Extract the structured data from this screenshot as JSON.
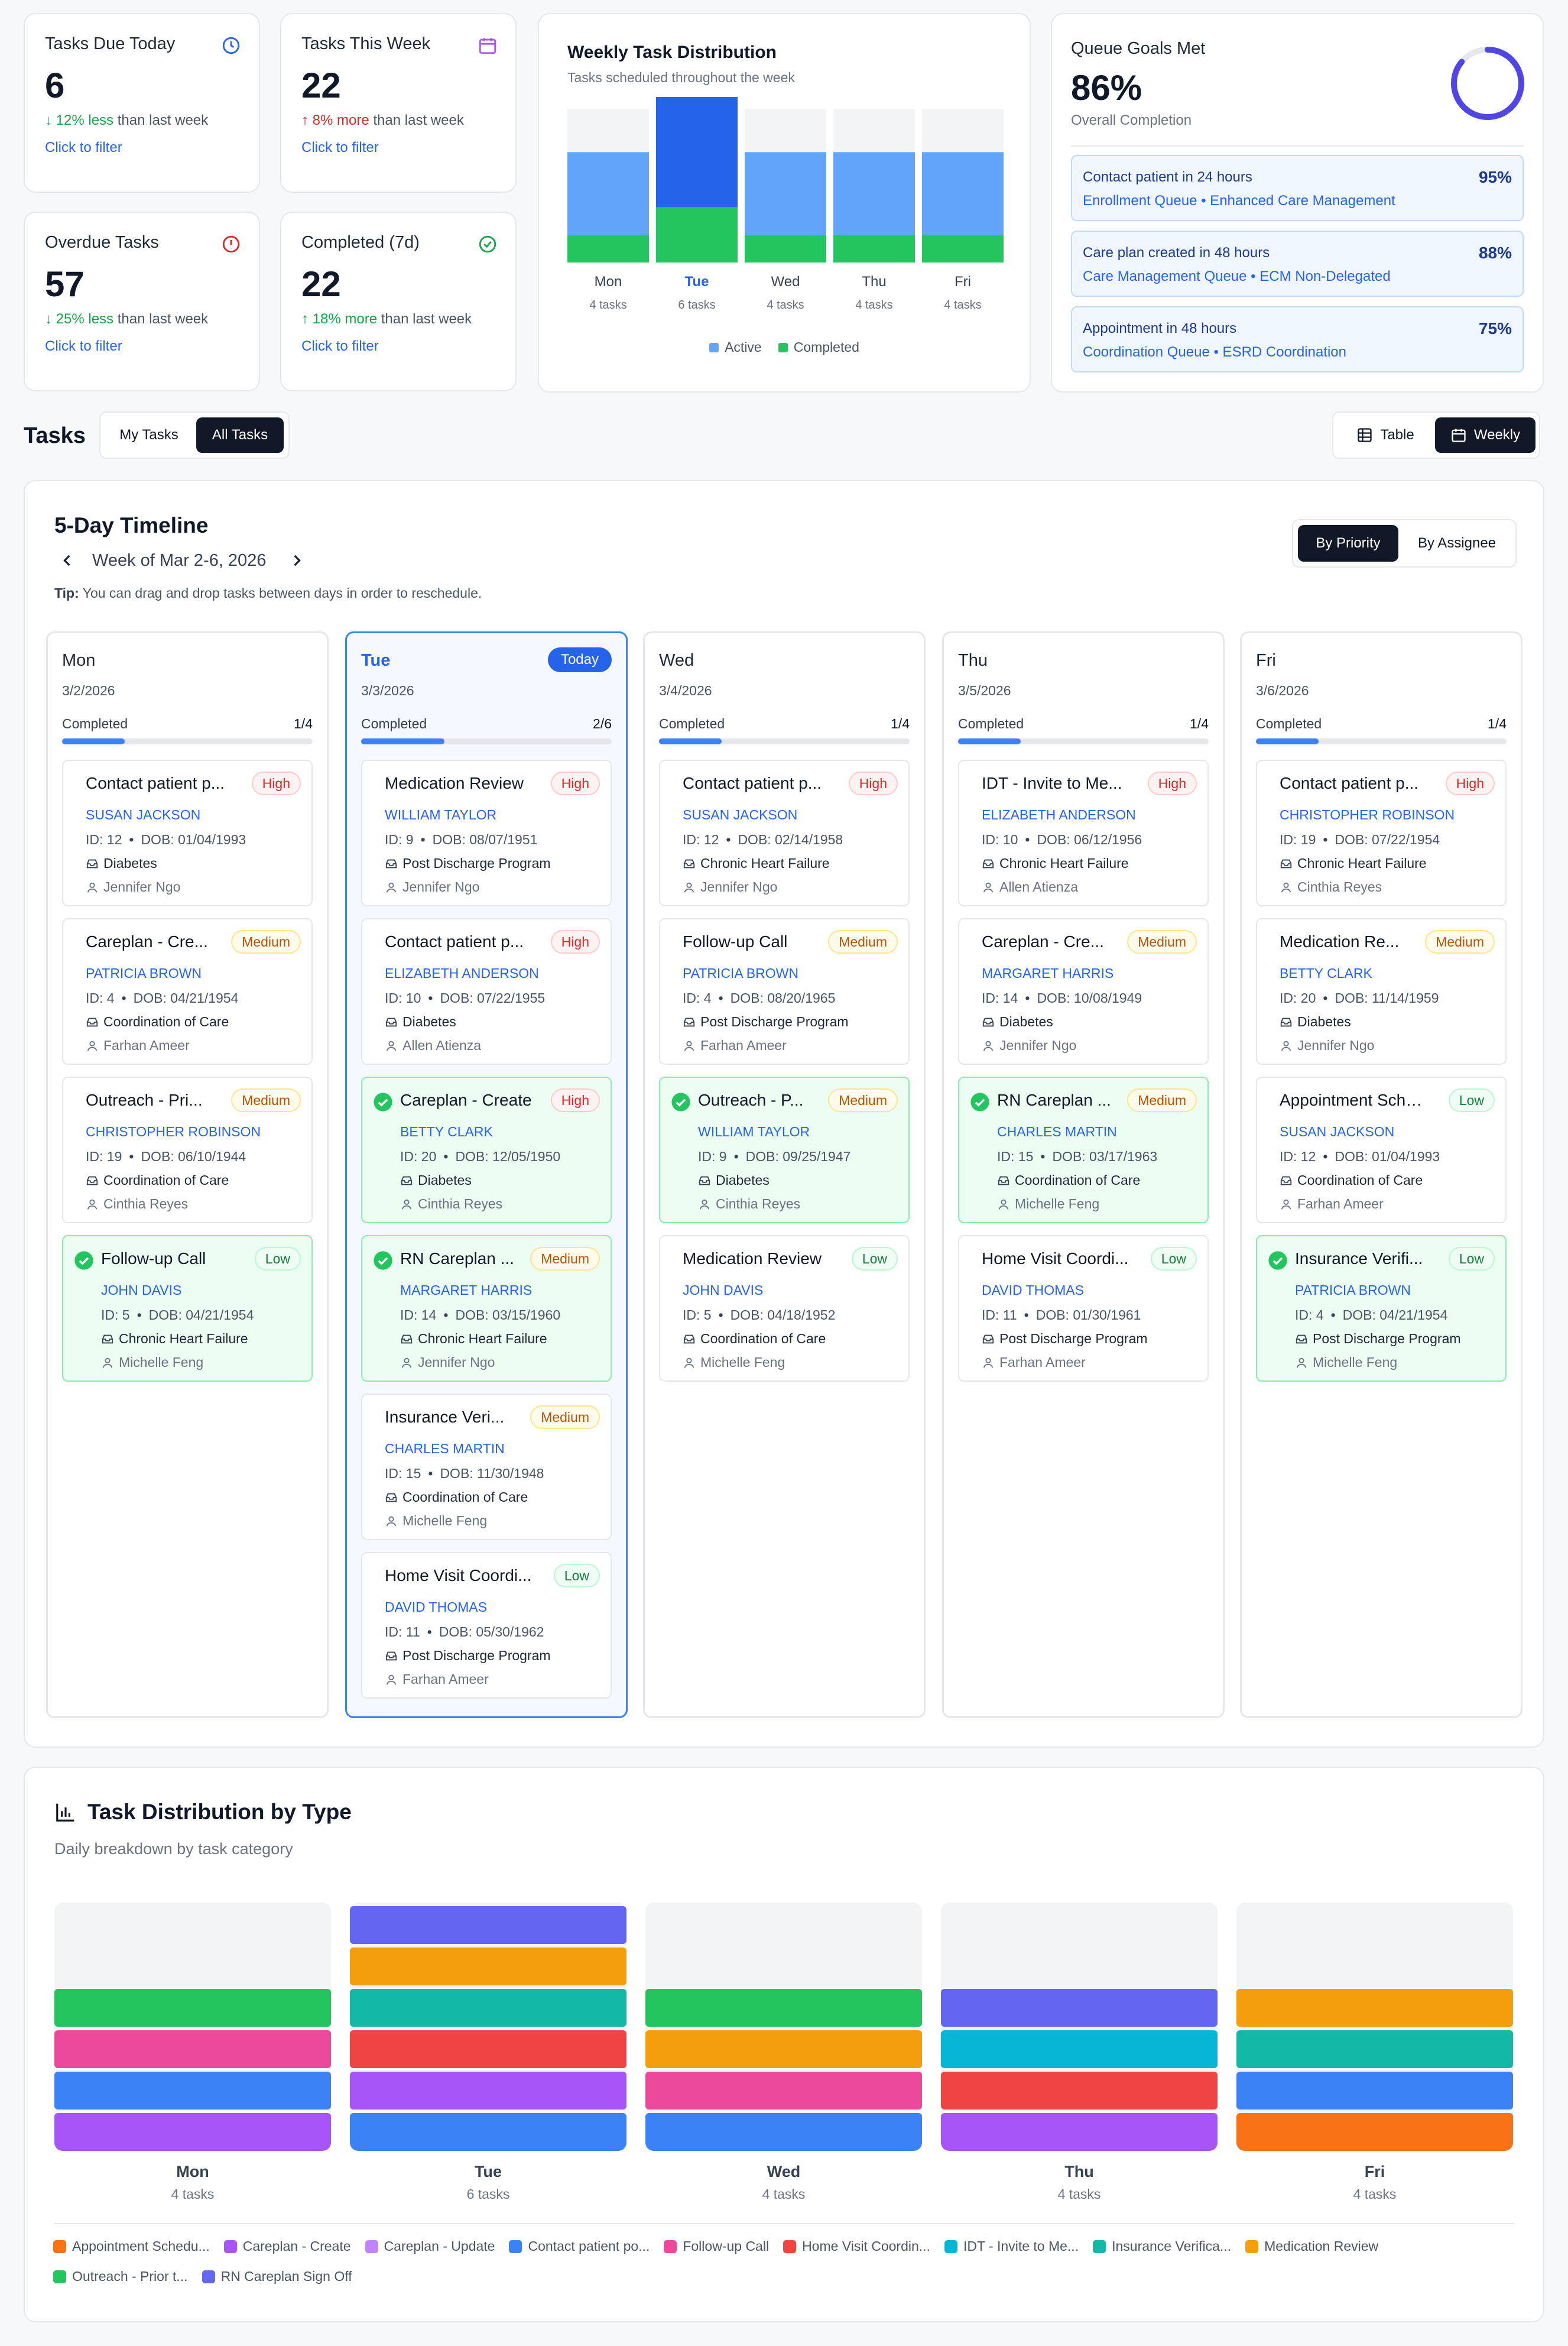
{
  "stats": [
    {
      "title": "Tasks Due Today",
      "value": "6",
      "delta": "12% less",
      "delta_dir": "down",
      "delta_suffix": "than last week",
      "filter": "Click to filter",
      "icon": "clock-icon"
    },
    {
      "title": "Tasks This Week",
      "value": "22",
      "delta": "8% more",
      "delta_dir": "up-bad",
      "delta_suffix": "than last week",
      "filter": "Click to filter",
      "icon": "calendar-icon"
    },
    {
      "title": "Overdue Tasks",
      "value": "57",
      "delta": "25% less",
      "delta_dir": "down",
      "delta_suffix": "than last week",
      "filter": "Click to filter",
      "icon": "alert-circle-icon"
    },
    {
      "title": "Completed (7d)",
      "value": "22",
      "delta": "18% more",
      "delta_dir": "up-good",
      "delta_suffix": "than last week",
      "filter": "Click to filter",
      "icon": "check-circle-icon"
    }
  ],
  "weekly_dist": {
    "title": "Weekly Task Distribution",
    "subtitle": "Tasks scheduled throughout the week",
    "legend_active": "Active",
    "legend_completed": "Completed"
  },
  "chart_data": {
    "type": "bar",
    "categories": [
      "Mon",
      "Tue",
      "Wed",
      "Thu",
      "Fri"
    ],
    "tick_sublabels": [
      "4 tasks",
      "6 tasks",
      "4 tasks",
      "4 tasks",
      "4 tasks"
    ],
    "series": [
      {
        "name": "Active",
        "values": [
          3,
          4,
          3,
          3,
          3
        ]
      },
      {
        "name": "Completed",
        "values": [
          1,
          2,
          1,
          1,
          1
        ]
      }
    ],
    "ylim": [
      0,
      6
    ],
    "highlight": "Tue"
  },
  "queue": {
    "title": "Queue Goals Met",
    "value": "86%",
    "subtitle": "Overall Completion",
    "completion": 0.86,
    "goals": [
      {
        "title": "Contact patient in 24 hours",
        "sub": "Enrollment Queue • Enhanced Care Management",
        "pct": "95%"
      },
      {
        "title": "Care plan created in 48 hours",
        "sub": "Care Management Queue • ECM Non-Delegated",
        "pct": "88%"
      },
      {
        "title": "Appointment in 48 hours",
        "sub": "Coordination Queue • ESRD Coordination",
        "pct": "75%"
      }
    ]
  },
  "tasks_header": {
    "title": "Tasks",
    "my_tasks": "My Tasks",
    "all_tasks": "All Tasks",
    "table": "Table",
    "weekly": "Weekly"
  },
  "timeline": {
    "title": "5-Day Timeline",
    "week_label": "Week of Mar 2-6, 2026",
    "tip_bold": "Tip:",
    "tip": "You can drag and drop tasks between days in order to reschedule.",
    "by_priority": "By Priority",
    "by_assignee": "By Assignee",
    "completed_label": "Completed",
    "today_label": "Today",
    "days": [
      {
        "name": "Mon",
        "date": "3/2/2026",
        "ratio": "1/4",
        "frac": 0.25,
        "tasks": [
          {
            "title": "Contact patient p...",
            "priority": "High",
            "patient": "SUSAN JACKSON",
            "id": "ID: 12",
            "dob": "DOB: 01/04/1993",
            "program": "Diabetes",
            "user": "Jennifer Ngo",
            "done": false
          },
          {
            "title": "Careplan - Cre...",
            "priority": "Medium",
            "patient": "PATRICIA BROWN",
            "id": "ID: 4",
            "dob": "DOB: 04/21/1954",
            "program": "Coordination of Care",
            "user": "Farhan Ameer",
            "done": false
          },
          {
            "title": "Outreach - Pri...",
            "priority": "Medium",
            "patient": "CHRISTOPHER ROBINSON",
            "id": "ID: 19",
            "dob": "DOB: 06/10/1944",
            "program": "Coordination of Care",
            "user": "Cinthia Reyes",
            "done": false
          },
          {
            "title": "Follow-up Call",
            "priority": "Low",
            "patient": "JOHN DAVIS",
            "id": "ID: 5",
            "dob": "DOB: 04/21/1954",
            "program": "Chronic Heart Failure",
            "user": "Michelle Feng",
            "done": true
          }
        ]
      },
      {
        "name": "Tue",
        "date": "3/3/2026",
        "ratio": "2/6",
        "frac": 0.333,
        "today": true,
        "tasks": [
          {
            "title": "Medication Review",
            "priority": "High",
            "patient": "WILLIAM TAYLOR",
            "id": "ID: 9",
            "dob": "DOB: 08/07/1951",
            "program": "Post Discharge Program",
            "user": "Jennifer Ngo",
            "done": false
          },
          {
            "title": "Contact patient p...",
            "priority": "High",
            "patient": "ELIZABETH ANDERSON",
            "id": "ID: 10",
            "dob": "DOB: 07/22/1955",
            "program": "Diabetes",
            "user": "Allen Atienza",
            "done": false
          },
          {
            "title": "Careplan - Create",
            "priority": "High",
            "patient": "BETTY CLARK",
            "id": "ID: 20",
            "dob": "DOB: 12/05/1950",
            "program": "Diabetes",
            "user": "Cinthia Reyes",
            "done": true
          },
          {
            "title": "RN Careplan ...",
            "priority": "Medium",
            "patient": "MARGARET HARRIS",
            "id": "ID: 14",
            "dob": "DOB: 03/15/1960",
            "program": "Chronic Heart Failure",
            "user": "Jennifer Ngo",
            "done": true
          },
          {
            "title": "Insurance Veri...",
            "priority": "Medium",
            "patient": "CHARLES MARTIN",
            "id": "ID: 15",
            "dob": "DOB: 11/30/1948",
            "program": "Coordination of Care",
            "user": "Michelle Feng",
            "done": false
          },
          {
            "title": "Home Visit Coordi...",
            "priority": "Low",
            "patient": "DAVID THOMAS",
            "id": "ID: 11",
            "dob": "DOB: 05/30/1962",
            "program": "Post Discharge Program",
            "user": "Farhan Ameer",
            "done": false
          }
        ]
      },
      {
        "name": "Wed",
        "date": "3/4/2026",
        "ratio": "1/4",
        "frac": 0.25,
        "tasks": [
          {
            "title": "Contact patient p...",
            "priority": "High",
            "patient": "SUSAN JACKSON",
            "id": "ID: 12",
            "dob": "DOB: 02/14/1958",
            "program": "Chronic Heart Failure",
            "user": "Jennifer Ngo",
            "done": false
          },
          {
            "title": "Follow-up Call",
            "priority": "Medium",
            "patient": "PATRICIA BROWN",
            "id": "ID: 4",
            "dob": "DOB: 08/20/1965",
            "program": "Post Discharge Program",
            "user": "Farhan Ameer",
            "done": false
          },
          {
            "title": "Outreach - P...",
            "priority": "Medium",
            "patient": "WILLIAM TAYLOR",
            "id": "ID: 9",
            "dob": "DOB: 09/25/1947",
            "program": "Diabetes",
            "user": "Cinthia Reyes",
            "done": true
          },
          {
            "title": "Medication Review",
            "priority": "Low",
            "patient": "JOHN DAVIS",
            "id": "ID: 5",
            "dob": "DOB: 04/18/1952",
            "program": "Coordination of Care",
            "user": "Michelle Feng",
            "done": false
          }
        ]
      },
      {
        "name": "Thu",
        "date": "3/5/2026",
        "ratio": "1/4",
        "frac": 0.25,
        "tasks": [
          {
            "title": "IDT - Invite to Me...",
            "priority": "High",
            "patient": "ELIZABETH ANDERSON",
            "id": "ID: 10",
            "dob": "DOB: 06/12/1956",
            "program": "Chronic Heart Failure",
            "user": "Allen Atienza",
            "done": false
          },
          {
            "title": "Careplan - Cre...",
            "priority": "Medium",
            "patient": "MARGARET HARRIS",
            "id": "ID: 14",
            "dob": "DOB: 10/08/1949",
            "program": "Diabetes",
            "user": "Jennifer Ngo",
            "done": false
          },
          {
            "title": "RN Careplan ...",
            "priority": "Medium",
            "patient": "CHARLES MARTIN",
            "id": "ID: 15",
            "dob": "DOB: 03/17/1963",
            "program": "Coordination of Care",
            "user": "Michelle Feng",
            "done": true
          },
          {
            "title": "Home Visit Coordi...",
            "priority": "Low",
            "patient": "DAVID THOMAS",
            "id": "ID: 11",
            "dob": "DOB: 01/30/1961",
            "program": "Post Discharge Program",
            "user": "Farhan Ameer",
            "done": false
          }
        ]
      },
      {
        "name": "Fri",
        "date": "3/6/2026",
        "ratio": "1/4",
        "frac": 0.25,
        "tasks": [
          {
            "title": "Contact patient p...",
            "priority": "High",
            "patient": "CHRISTOPHER ROBINSON",
            "id": "ID: 19",
            "dob": "DOB: 07/22/1954",
            "program": "Chronic Heart Failure",
            "user": "Cinthia Reyes",
            "done": false
          },
          {
            "title": "Medication Re...",
            "priority": "Medium",
            "patient": "BETTY CLARK",
            "id": "ID: 20",
            "dob": "DOB: 11/14/1959",
            "program": "Diabetes",
            "user": "Jennifer Ngo",
            "done": false
          },
          {
            "title": "Appointment Sche...",
            "priority": "Low",
            "patient": "SUSAN JACKSON",
            "id": "ID: 12",
            "dob": "DOB: 01/04/1993",
            "program": "Coordination of Care",
            "user": "Farhan Ameer",
            "done": false
          },
          {
            "title": "Insurance Verifi...",
            "priority": "Low",
            "patient": "PATRICIA BROWN",
            "id": "ID: 4",
            "dob": "DOB: 04/21/1954",
            "program": "Post Discharge Program",
            "user": "Michelle Feng",
            "done": true
          }
        ]
      }
    ]
  },
  "type_dist": {
    "title": "Task Distribution by Type",
    "subtitle": "Daily breakdown by task category",
    "types": [
      {
        "name": "Appointment Schedu...",
        "color": "#f97316"
      },
      {
        "name": "Careplan - Create",
        "color": "#a855f7"
      },
      {
        "name": "Careplan - Update",
        "color": "#c084fc"
      },
      {
        "name": "Contact patient po...",
        "color": "#3b82f6"
      },
      {
        "name": "Follow-up Call",
        "color": "#ec4899"
      },
      {
        "name": "Home Visit Coordin...",
        "color": "#ef4444"
      },
      {
        "name": "IDT - Invite to Me...",
        "color": "#06b6d4"
      },
      {
        "name": "Insurance Verifica...",
        "color": "#14b8a6"
      },
      {
        "name": "Medication Review",
        "color": "#f59e0b"
      },
      {
        "name": "Outreach - Prior t...",
        "color": "#22c55e"
      },
      {
        "name": "RN Careplan Sign Off",
        "color": "#6366f1"
      }
    ],
    "days": [
      {
        "name": "Mon",
        "count": "4 tasks",
        "stack": [
          "#a855f7",
          "#3b82f6",
          "#ec4899",
          "#22c55e"
        ]
      },
      {
        "name": "Tue",
        "count": "6 tasks",
        "stack": [
          "#3b82f6",
          "#a855f7",
          "#ef4444",
          "#14b8a6",
          "#f59e0b",
          "#6366f1"
        ]
      },
      {
        "name": "Wed",
        "count": "4 tasks",
        "stack": [
          "#3b82f6",
          "#ec4899",
          "#f59e0b",
          "#22c55e"
        ]
      },
      {
        "name": "Thu",
        "count": "4 tasks",
        "stack": [
          "#a855f7",
          "#ef4444",
          "#06b6d4",
          "#6366f1"
        ]
      },
      {
        "name": "Fri",
        "count": "4 tasks",
        "stack": [
          "#f97316",
          "#3b82f6",
          "#14b8a6",
          "#f59e0b"
        ]
      }
    ]
  }
}
